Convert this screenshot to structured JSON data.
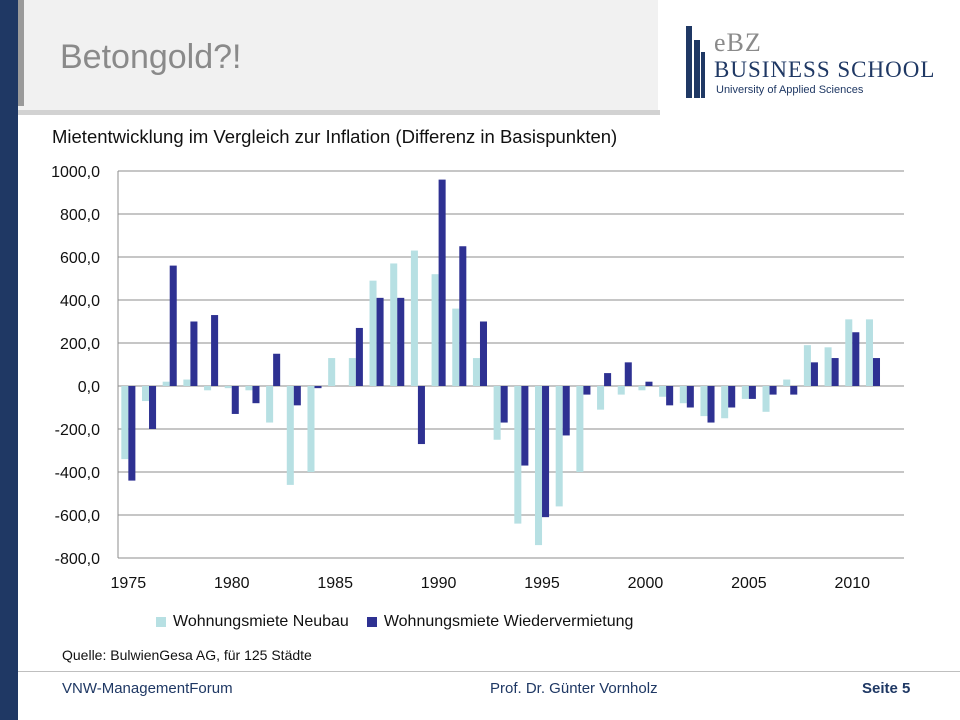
{
  "slide": {
    "title": "Betongold?!"
  },
  "logo": {
    "line1": "eBZ",
    "line2": "BUSINESS SCHOOL",
    "line3": "University of Applied Sciences"
  },
  "source": "Quelle: BulwienGesa AG, für 125 Städte",
  "footer": {
    "left": "VNW-ManagementForum",
    "center": "Prof. Dr. Günter Vornholz",
    "page": "Seite 5"
  },
  "colors": {
    "brand": "#1f3864",
    "series_neubau": "#b7e0e3",
    "series_wieder": "#2e3192",
    "grid": "#8c8c8c"
  },
  "chart_data": {
    "type": "bar",
    "title": "Mietentwicklung im Vergleich zur Inflation (Differenz in Basispunkten)",
    "xlabel": "",
    "ylabel": "",
    "ylim": [
      -800,
      1000
    ],
    "yticks": [
      1000,
      800,
      600,
      400,
      200,
      0,
      -200,
      -400,
      -600,
      -800
    ],
    "ytick_labels": [
      "1000,0",
      "800,0",
      "600,0",
      "400,0",
      "200,0",
      "0,0",
      "-200,0",
      "-400,0",
      "-600,0",
      "-800,0"
    ],
    "xtick_labels": [
      "1975",
      "1980",
      "1985",
      "1990",
      "1995",
      "2000",
      "2005",
      "2010"
    ],
    "grid": true,
    "legend_position": "bottom",
    "categories": [
      1975,
      1976,
      1977,
      1978,
      1979,
      1980,
      1981,
      1982,
      1983,
      1984,
      1985,
      1986,
      1987,
      1988,
      1989,
      1990,
      1991,
      1992,
      1993,
      1994,
      1995,
      1996,
      1997,
      1998,
      1999,
      2000,
      2001,
      2002,
      2003,
      2004,
      2005,
      2006,
      2007,
      2008,
      2009,
      2010,
      2011,
      2012
    ],
    "series": [
      {
        "name": "Wohnungsmiete Neubau",
        "values": [
          -340,
          -70,
          20,
          30,
          -20,
          -10,
          -20,
          -170,
          -460,
          -400,
          130,
          130,
          490,
          570,
          630,
          520,
          360,
          130,
          -250,
          -640,
          -740,
          -560,
          -400,
          -110,
          -40,
          -20,
          -50,
          -80,
          -140,
          -150,
          -60,
          -120,
          30,
          190,
          180,
          310,
          310,
          0
        ]
      },
      {
        "name": "Wohnungsmiete Wiedervermietung",
        "values": [
          -440,
          -200,
          560,
          300,
          330,
          -130,
          -80,
          150,
          -90,
          -10,
          0,
          270,
          410,
          410,
          -270,
          960,
          650,
          300,
          -170,
          -370,
          -610,
          -230,
          -40,
          60,
          110,
          20,
          -90,
          -100,
          -170,
          -100,
          -60,
          -40,
          -40,
          110,
          130,
          250,
          130,
          0
        ]
      }
    ]
  }
}
